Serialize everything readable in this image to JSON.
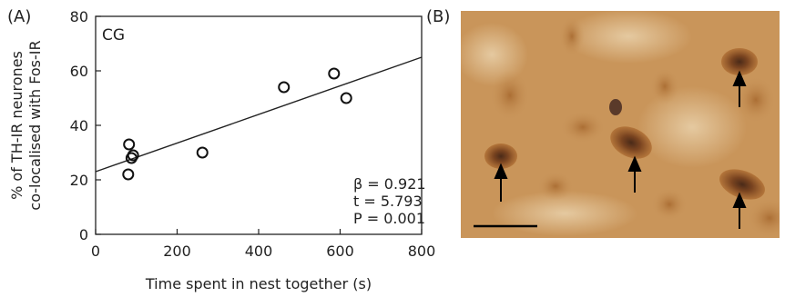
{
  "panels": {
    "a_label": "(A)",
    "b_label": "(B)"
  },
  "chart_data": {
    "type": "scatter",
    "group_label": "CG",
    "xlabel": "Time spent in nest together (s)",
    "ylabel_line1": "% of TH-IR neurones",
    "ylabel_line2": "co-localised with Fos-IR",
    "xlim": [
      0,
      800
    ],
    "ylim": [
      0,
      80
    ],
    "x_ticks": [
      0,
      200,
      400,
      600,
      800
    ],
    "y_ticks": [
      0,
      20,
      40,
      60,
      80
    ],
    "points": [
      {
        "x": 80,
        "y": 22
      },
      {
        "x": 82,
        "y": 33
      },
      {
        "x": 88,
        "y": 28
      },
      {
        "x": 92,
        "y": 29
      },
      {
        "x": 262,
        "y": 30
      },
      {
        "x": 462,
        "y": 54
      },
      {
        "x": 585,
        "y": 59
      },
      {
        "x": 615,
        "y": 50
      }
    ],
    "regression_line": {
      "x": [
        0,
        800
      ],
      "y": [
        23,
        65
      ]
    },
    "stats": {
      "beta": "β = 0.921",
      "t": "t = 5.793",
      "p": "P = 0.001"
    },
    "grid": false,
    "legend": "none"
  },
  "micrograph": {
    "arrow_count": 4,
    "scale_bar": true,
    "colors": {
      "background": "#c9955a",
      "cell": "#a05f25",
      "nucleus": "#4a2a18"
    }
  }
}
